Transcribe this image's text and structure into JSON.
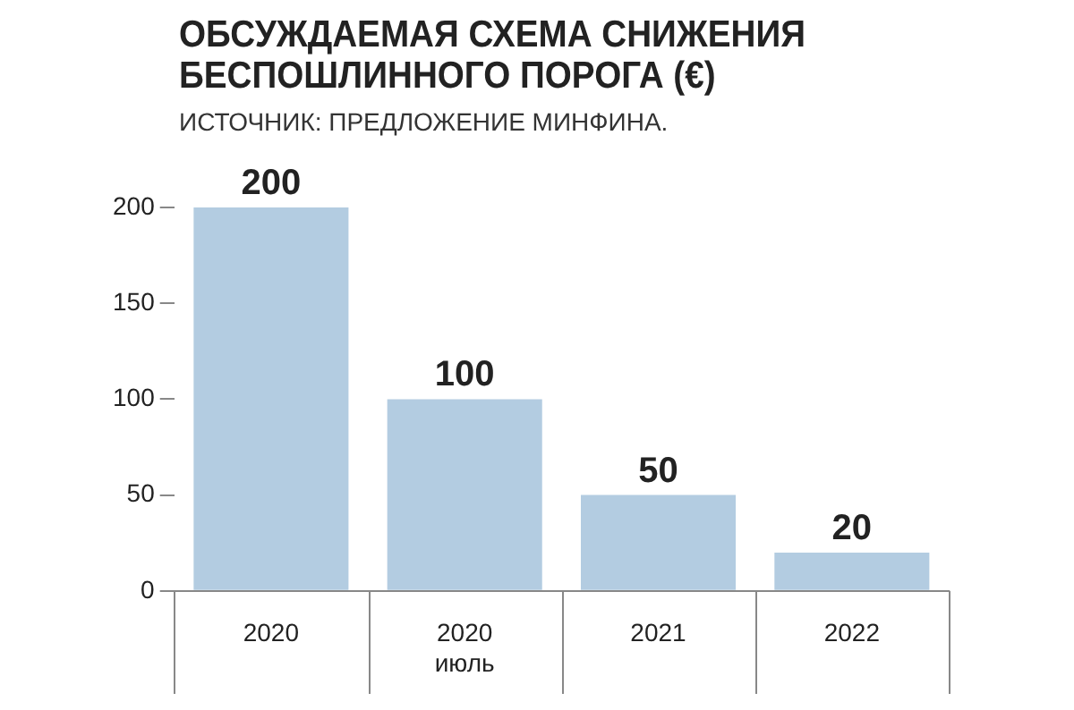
{
  "chart_data": {
    "type": "bar",
    "title": "ОБСУЖДАЕМАЯ СХЕМА СНИЖЕНИЯ БЕСПОШЛИННОГО ПОРОГА (€)",
    "subtitle": "ИСТОЧНИК: ПРЕДЛОЖЕНИЕ МИНФИНА.",
    "categories": [
      "2020",
      "2020\nиюль",
      "2021",
      "2022"
    ],
    "values": [
      200,
      100,
      50,
      20
    ],
    "color": "#b3cce1",
    "ylim": [
      0,
      200
    ],
    "yticks": [
      0,
      50,
      100,
      150,
      200
    ],
    "data_labels": true
  }
}
